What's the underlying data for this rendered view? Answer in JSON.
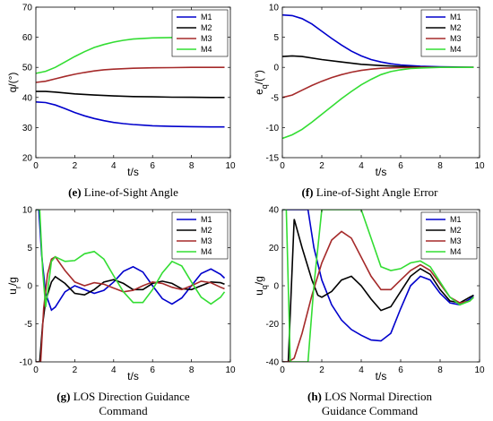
{
  "captions": [
    {
      "letter": "(e)",
      "line1": "Line-of-Sight Angle",
      "line2": ""
    },
    {
      "letter": "(f)",
      "line1": "Line-of-Sight Angle Error",
      "line2": ""
    },
    {
      "letter": "(g)",
      "line1": "LOS Direction Guidance",
      "line2": "Command"
    },
    {
      "letter": "(h)",
      "line1": "LOS Normal Direction",
      "line2": "Guidance Command"
    }
  ],
  "colors": {
    "M1": "#0000cc",
    "M2": "#000000",
    "M3": "#a52a2a",
    "M4": "#33dd33"
  },
  "chart_data": [
    {
      "type": "line",
      "xlabel": "t/s",
      "ylabel": "q/(°)",
      "xlim": [
        0,
        10
      ],
      "ylim": [
        20,
        70
      ],
      "xticks": [
        0,
        2,
        4,
        6,
        8,
        10
      ],
      "yticks": [
        20,
        30,
        40,
        50,
        60,
        70
      ],
      "legend": "top-right",
      "series": [
        {
          "name": "M1",
          "x": [
            0,
            0.5,
            1,
            1.5,
            2,
            2.5,
            3,
            3.5,
            4,
            4.5,
            5,
            5.5,
            6,
            7,
            8,
            9,
            9.7
          ],
          "y": [
            38.5,
            38.3,
            37.5,
            36.3,
            35,
            33.9,
            33,
            32.3,
            31.7,
            31.3,
            31,
            30.8,
            30.6,
            30.4,
            30.3,
            30.2,
            30.2
          ]
        },
        {
          "name": "M2",
          "x": [
            0,
            0.5,
            1,
            1.5,
            2,
            3,
            4,
            5,
            6,
            7,
            8,
            9,
            9.7
          ],
          "y": [
            42,
            42,
            41.8,
            41.5,
            41.2,
            40.8,
            40.5,
            40.3,
            40.2,
            40.1,
            40.05,
            40,
            40
          ]
        },
        {
          "name": "M3",
          "x": [
            0,
            0.5,
            1,
            1.5,
            2,
            2.5,
            3,
            3.5,
            4,
            5,
            6,
            7,
            8,
            9,
            9.7
          ],
          "y": [
            45,
            45.4,
            46.2,
            47,
            47.7,
            48.3,
            48.8,
            49.2,
            49.4,
            49.7,
            49.85,
            49.9,
            50,
            50,
            50
          ]
        },
        {
          "name": "M4",
          "x": [
            0,
            0.5,
            1,
            1.5,
            2,
            2.5,
            3,
            3.5,
            4,
            4.5,
            5,
            5.5,
            6,
            7,
            8,
            9,
            9.7
          ],
          "y": [
            48,
            48.7,
            50,
            51.8,
            53.6,
            55.2,
            56.6,
            57.6,
            58.4,
            59,
            59.4,
            59.6,
            59.8,
            59.9,
            60,
            60,
            60
          ]
        }
      ]
    },
    {
      "type": "line",
      "xlabel": "t/s",
      "ylabel": "e_q/(°)",
      "xlim": [
        0,
        10
      ],
      "ylim": [
        -15,
        10
      ],
      "xticks": [
        0,
        2,
        4,
        6,
        8,
        10
      ],
      "yticks": [
        -15,
        -10,
        -5,
        0,
        5,
        10
      ],
      "legend": "top-right",
      "series": [
        {
          "name": "M1",
          "x": [
            0,
            0.5,
            1,
            1.5,
            2,
            2.5,
            3,
            3.5,
            4,
            4.5,
            5,
            5.5,
            6,
            7,
            8,
            9,
            9.7
          ],
          "y": [
            8.7,
            8.6,
            8.1,
            7.2,
            6,
            4.8,
            3.7,
            2.7,
            1.9,
            1.3,
            0.9,
            0.6,
            0.4,
            0.2,
            0.1,
            0.05,
            0
          ]
        },
        {
          "name": "M2",
          "x": [
            0,
            0.5,
            1,
            2,
            3,
            4,
            5,
            6,
            7,
            8,
            9,
            9.7
          ],
          "y": [
            1.8,
            1.9,
            1.8,
            1.3,
            0.9,
            0.5,
            0.3,
            0.15,
            0.05,
            0,
            0,
            0
          ]
        },
        {
          "name": "M3",
          "x": [
            0,
            0.5,
            1,
            1.5,
            2,
            2.5,
            3,
            3.5,
            4,
            4.5,
            5,
            6,
            7,
            8,
            9,
            9.7
          ],
          "y": [
            -5,
            -4.6,
            -3.8,
            -3,
            -2.3,
            -1.7,
            -1.2,
            -0.8,
            -0.5,
            -0.3,
            -0.15,
            -0.05,
            0,
            0,
            0,
            0
          ]
        },
        {
          "name": "M4",
          "x": [
            0,
            0.5,
            1,
            1.5,
            2,
            2.5,
            3,
            3.5,
            4,
            4.5,
            5,
            5.5,
            6,
            6.5,
            7,
            8,
            9,
            9.7
          ],
          "y": [
            -11.8,
            -11.2,
            -10.3,
            -9.1,
            -7.8,
            -6.5,
            -5.2,
            -4,
            -2.9,
            -2,
            -1.2,
            -0.7,
            -0.4,
            -0.2,
            -0.1,
            0,
            0,
            0
          ]
        }
      ]
    },
    {
      "type": "line",
      "xlabel": "t/s",
      "ylabel": "u_r/g",
      "xlim": [
        0,
        10
      ],
      "ylim": [
        -10,
        10
      ],
      "xticks": [
        0,
        2,
        4,
        6,
        8,
        10
      ],
      "yticks": [
        -10,
        -5,
        0,
        5,
        10
      ],
      "legend": "top-right",
      "series": [
        {
          "name": "M1",
          "x": [
            0,
            0.15,
            0.3,
            0.5,
            0.8,
            1,
            1.5,
            2,
            2.5,
            3,
            3.5,
            4,
            4.5,
            5,
            5.5,
            6,
            6.5,
            7,
            7.5,
            8,
            8.5,
            9,
            9.5,
            9.7
          ],
          "y": [
            10,
            10,
            4,
            -1,
            -3.2,
            -2.8,
            -0.8,
            0,
            -0.5,
            -1,
            -0.6,
            0.5,
            1.9,
            2.5,
            1.8,
            0,
            -1.7,
            -2.4,
            -1.6,
            0,
            1.6,
            2.2,
            1.5,
            1
          ]
        },
        {
          "name": "M2",
          "x": [
            0,
            0.2,
            0.35,
            0.5,
            0.8,
            1,
            1.5,
            2,
            2.5,
            3,
            3.5,
            4,
            4.5,
            5,
            5.5,
            6,
            6.5,
            7,
            7.5,
            8,
            8.5,
            9,
            9.5,
            9.7
          ],
          "y": [
            -10,
            -10,
            -5,
            -2,
            0.5,
            1.2,
            0.3,
            -1,
            -1.2,
            -0.5,
            0.5,
            0.8,
            0.3,
            -0.5,
            -0.5,
            0.3,
            0.6,
            0.3,
            -0.4,
            -0.5,
            0,
            0.5,
            0.4,
            0.2
          ]
        },
        {
          "name": "M3",
          "x": [
            0,
            0.25,
            0.4,
            0.6,
            0.8,
            1,
            1.5,
            2,
            2.5,
            3,
            3.5,
            4,
            4.5,
            5,
            5.5,
            6,
            6.5,
            7,
            7.5,
            8,
            8.5,
            9,
            9.5,
            9.7
          ],
          "y": [
            -10,
            -10,
            -3,
            1.5,
            3.5,
            3.8,
            2,
            0.5,
            0,
            0.4,
            0.2,
            -0.3,
            -0.8,
            -0.6,
            0,
            0.5,
            0.3,
            -0.2,
            -0.5,
            0,
            0.6,
            0.4,
            -0.2,
            -0.4
          ]
        },
        {
          "name": "M4",
          "x": [
            0,
            0.2,
            0.35,
            0.5,
            0.8,
            1,
            1.5,
            2,
            2.5,
            3,
            3.5,
            4,
            4.5,
            5,
            5.5,
            6,
            6.5,
            7,
            7.5,
            8,
            8.5,
            9,
            9.5,
            9.7
          ],
          "y": [
            10,
            10,
            2,
            -2.8,
            3.2,
            3.8,
            3.2,
            3.3,
            4.2,
            4.5,
            3.5,
            1.3,
            -0.8,
            -2.2,
            -2.2,
            -0.5,
            1.7,
            3.2,
            2.6,
            0.5,
            -1.5,
            -2.4,
            -1.5,
            -0.8
          ]
        }
      ]
    },
    {
      "type": "line",
      "xlabel": "t/s",
      "ylabel": "u_q/g",
      "xlim": [
        0,
        10
      ],
      "ylim": [
        -40,
        40
      ],
      "xticks": [
        0,
        2,
        4,
        6,
        8,
        10
      ],
      "yticks": [
        -40,
        -20,
        0,
        20,
        40
      ],
      "legend": "top-right",
      "series": [
        {
          "name": "M1",
          "x": [
            0,
            0.5,
            1,
            1.3,
            1.6,
            2,
            2.5,
            3,
            3.5,
            4,
            4.5,
            5,
            5.5,
            6,
            6.5,
            7,
            7.5,
            8,
            8.5,
            9,
            9.5,
            9.7
          ],
          "y": [
            40,
            40,
            40,
            40,
            20,
            3,
            -10,
            -18,
            -23,
            -26,
            -28.5,
            -29,
            -25,
            -12,
            0,
            5,
            3,
            -4,
            -9,
            -10,
            -7,
            -5
          ]
        },
        {
          "name": "M2",
          "x": [
            0,
            0.3,
            0.6,
            1,
            1.5,
            1.8,
            2,
            2.5,
            3,
            3.5,
            4,
            4.5,
            5,
            5.5,
            6,
            6.5,
            7,
            7.5,
            8,
            8.5,
            9,
            9.5,
            9.7
          ],
          "y": [
            -40,
            -40,
            35,
            20,
            3,
            -5,
            -6,
            -3,
            3,
            5,
            0,
            -7,
            -13,
            -11,
            -3,
            5,
            9,
            6,
            -2,
            -8,
            -9,
            -6,
            -5
          ]
        },
        {
          "name": "M3",
          "x": [
            0,
            0.3,
            0.6,
            1,
            1.5,
            2,
            2.5,
            3,
            3.5,
            4,
            4.5,
            5,
            5.5,
            6,
            6.5,
            7,
            7.5,
            8,
            8.5,
            9,
            9.5,
            9.7
          ],
          "y": [
            -40,
            -40,
            -38,
            -25,
            -5,
            12,
            24,
            28.5,
            25,
            15,
            5,
            -2,
            -2,
            3,
            8,
            11,
            8,
            1,
            -6,
            -9,
            -8,
            -6
          ]
        },
        {
          "name": "M4",
          "x": [
            0,
            0.2,
            0.4,
            0.7,
            1,
            1.3,
            1.6,
            2,
            2.5,
            3,
            3.5,
            4,
            4.5,
            5,
            5.5,
            6,
            6.5,
            7,
            7.5,
            8,
            8.5,
            9,
            9.5,
            9.7
          ],
          "y": [
            40,
            40,
            -40,
            -40,
            -40,
            -40,
            0,
            40,
            40,
            40,
            40,
            40,
            25,
            10,
            8,
            9,
            12,
            13,
            10,
            2,
            -6,
            -10,
            -8,
            -6
          ]
        }
      ]
    }
  ]
}
